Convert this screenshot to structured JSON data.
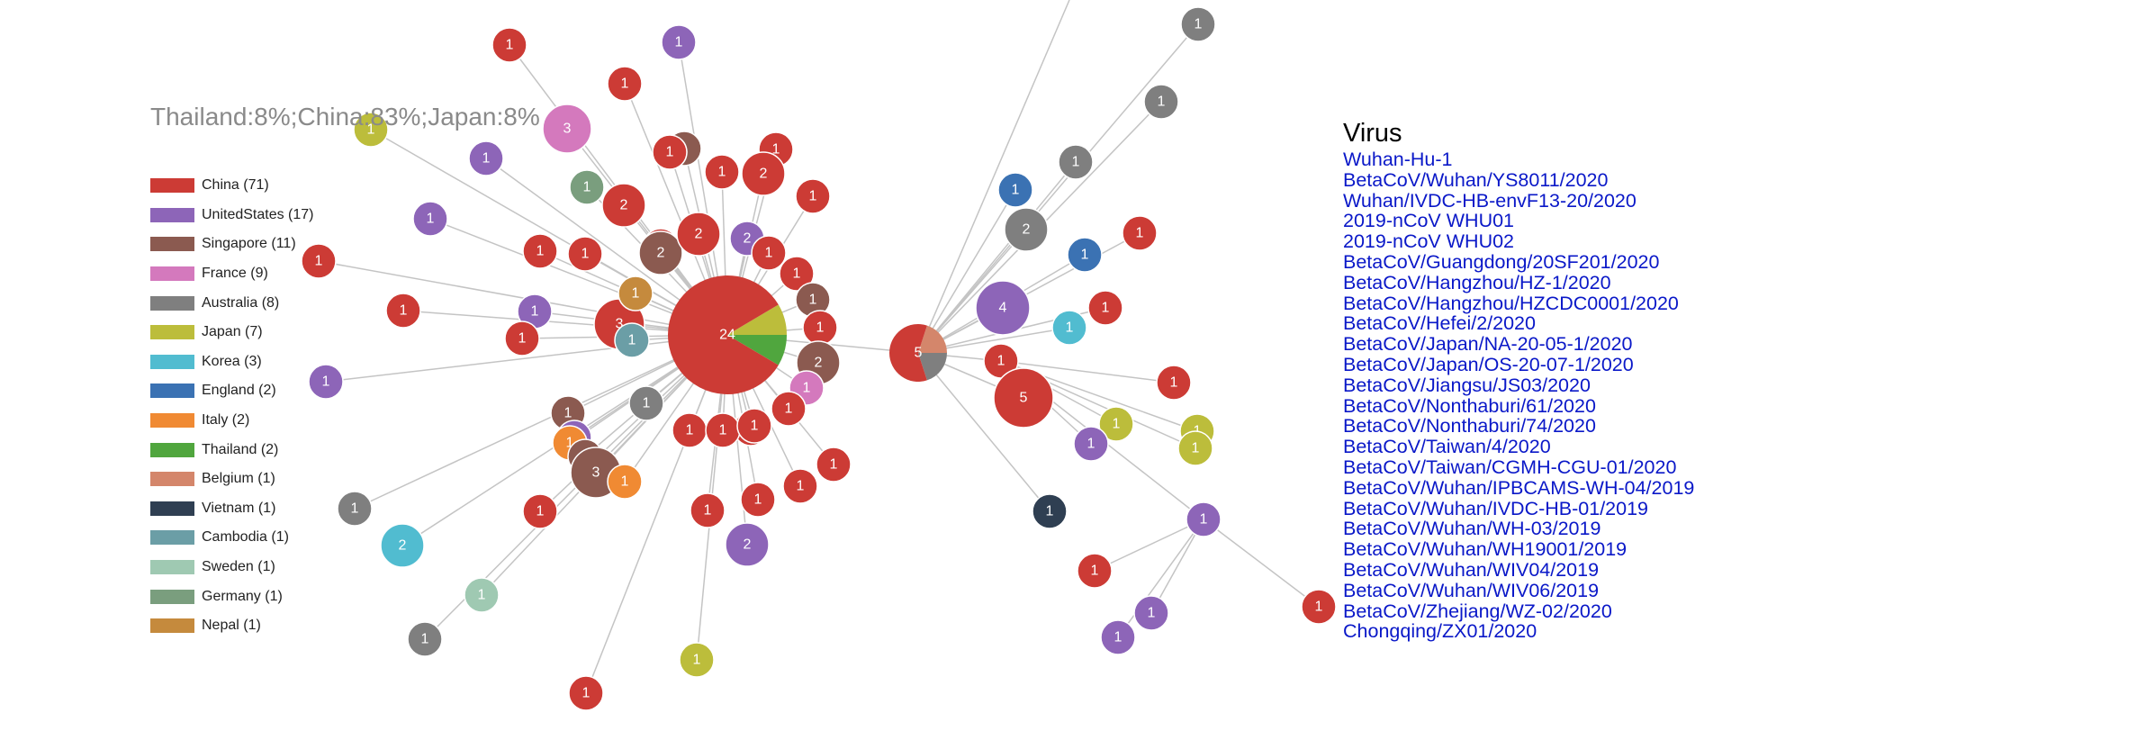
{
  "tooltip": "Thailand:8%;China:83%;Japan:8%",
  "colors": {
    "China": "#cc3b35",
    "UnitedStates": "#8d65b8",
    "Singapore": "#8b5a50",
    "France": "#d479bd",
    "Australia": "#7f7f7f",
    "Japan": "#bcbd3b",
    "Korea": "#51bcd0",
    "England": "#3b72b3",
    "Italy": "#f08a33",
    "Thailand": "#50a63e",
    "Belgium": "#d4866b",
    "Vietnam": "#2f3f52",
    "Cambodia": "#6b9ea6",
    "Sweden": "#9fc9b2",
    "Germany": "#7a9e7e",
    "Nepal": "#c58a3d",
    "edge": "#c4c4c4"
  },
  "legend": [
    {
      "country": "China",
      "label": "China (71)"
    },
    {
      "country": "UnitedStates",
      "label": "UnitedStates (17)"
    },
    {
      "country": "Singapore",
      "label": "Singapore (11)"
    },
    {
      "country": "France",
      "label": "France (9)"
    },
    {
      "country": "Australia",
      "label": "Australia (8)"
    },
    {
      "country": "Japan",
      "label": "Japan (7)"
    },
    {
      "country": "Korea",
      "label": "Korea (3)"
    },
    {
      "country": "England",
      "label": "England (2)"
    },
    {
      "country": "Italy",
      "label": "Italy (2)"
    },
    {
      "country": "Thailand",
      "label": "Thailand (2)"
    },
    {
      "country": "Belgium",
      "label": "Belgium (1)"
    },
    {
      "country": "Vietnam",
      "label": "Vietnam (1)"
    },
    {
      "country": "Cambodia",
      "label": "Cambodia (1)"
    },
    {
      "country": "Sweden",
      "label": "Sweden (1)"
    },
    {
      "country": "Germany",
      "label": "Germany (1)"
    },
    {
      "country": "Nepal",
      "label": "Nepal (1)"
    }
  ],
  "virus_panel": {
    "title": "Virus",
    "items": [
      "Wuhan-Hu-1",
      "BetaCoV/Wuhan/YS8011/2020",
      "Wuhan/IVDC-HB-envF13-20/2020",
      "2019-nCoV WHU01",
      "2019-nCoV WHU02",
      "BetaCoV/Guangdong/20SF201/2020",
      "BetaCoV/Hangzhou/HZ-1/2020",
      "BetaCoV/Hangzhou/HZCDC0001/2020",
      "BetaCoV/Hefei/2/2020",
      "BetaCoV/Japan/NA-20-05-1/2020",
      "BetaCoV/Japan/OS-20-07-1/2020",
      "BetaCoV/Jiangsu/JS03/2020",
      "BetaCoV/Nonthaburi/61/2020",
      "BetaCoV/Nonthaburi/74/2020",
      "BetaCoV/Taiwan/4/2020",
      "BetaCoV/Taiwan/CGMH-CGU-01/2020",
      "BetaCoV/Wuhan/IPBCAMS-WH-04/2019",
      "BetaCoV/Wuhan/IVDC-HB-01/2019",
      "BetaCoV/Wuhan/WH-03/2019",
      "BetaCoV/Wuhan/WH19001/2019",
      "BetaCoV/Wuhan/WIV04/2019",
      "BetaCoV/Wuhan/WIV06/2019",
      "BetaCoV/Zhejiang/WZ-02/2020",
      "Chongqing/ZX01/2020"
    ]
  },
  "network": {
    "hubs": [
      {
        "id": "hub-main",
        "count": "24",
        "composition": [
          {
            "country": "China",
            "share": 0.83
          },
          {
            "country": "Japan",
            "share": 0.085
          },
          {
            "country": "Thailand",
            "share": 0.085
          }
        ]
      },
      {
        "id": "hub-secondary",
        "count": "5",
        "composition": [
          {
            "country": "China",
            "share": 0.6
          },
          {
            "country": "Belgium",
            "share": 0.2
          },
          {
            "country": "Australia",
            "share": 0.2
          }
        ]
      }
    ],
    "nodes": [
      {
        "count": "1",
        "country": "China"
      },
      {
        "count": "1",
        "country": "UnitedStates"
      },
      {
        "count": "1",
        "country": "China"
      },
      {
        "count": "3",
        "country": "France"
      },
      {
        "count": "1",
        "country": "Japan"
      },
      {
        "count": "1",
        "country": "UnitedStates"
      },
      {
        "count": "1",
        "country": "UnitedStates"
      },
      {
        "count": "1",
        "country": "China"
      },
      {
        "count": "1",
        "country": "China"
      },
      {
        "count": "1",
        "country": "China"
      },
      {
        "count": "1",
        "country": "China"
      },
      {
        "count": "1",
        "country": "UnitedStates"
      },
      {
        "count": "1",
        "country": "China"
      },
      {
        "count": "1",
        "country": "UnitedStates"
      },
      {
        "count": "1",
        "country": "Germany"
      },
      {
        "count": "2",
        "country": "China"
      },
      {
        "count": "3",
        "country": "China"
      },
      {
        "count": "1",
        "country": "Nepal"
      },
      {
        "count": "1",
        "country": "Cambodia"
      },
      {
        "count": "1",
        "country": "China"
      },
      {
        "count": "1",
        "country": "Singapore"
      },
      {
        "count": "1",
        "country": "China"
      },
      {
        "count": "2",
        "country": "Singapore"
      },
      {
        "count": "2",
        "country": "China"
      },
      {
        "count": "1",
        "country": "China"
      },
      {
        "count": "2",
        "country": "China"
      },
      {
        "count": "1",
        "country": "China"
      },
      {
        "count": "2",
        "country": "UnitedStates"
      },
      {
        "count": "1",
        "country": "China"
      },
      {
        "count": "1",
        "country": "China"
      },
      {
        "count": "1",
        "country": "China"
      },
      {
        "count": "1",
        "country": "Singapore"
      },
      {
        "count": "1",
        "country": "China"
      },
      {
        "count": "2",
        "country": "Singapore"
      },
      {
        "count": "1",
        "country": "France"
      },
      {
        "count": "1",
        "country": "China"
      },
      {
        "count": "1",
        "country": "China"
      },
      {
        "count": "1",
        "country": "China"
      },
      {
        "count": "1",
        "country": "China"
      },
      {
        "count": "1",
        "country": "China"
      },
      {
        "count": "1",
        "country": "China"
      },
      {
        "count": "1",
        "country": "China"
      },
      {
        "count": "1",
        "country": "China"
      },
      {
        "count": "2",
        "country": "UnitedStates"
      },
      {
        "count": "1",
        "country": "China"
      },
      {
        "count": "1",
        "country": "Japan"
      },
      {
        "count": "1",
        "country": "China"
      },
      {
        "count": "1",
        "country": "Australia"
      },
      {
        "count": "1",
        "country": "Singapore"
      },
      {
        "count": "1",
        "country": "UnitedStates"
      },
      {
        "count": "1",
        "country": "Italy"
      },
      {
        "count": "1",
        "country": "Singapore"
      },
      {
        "count": "3",
        "country": "Singapore"
      },
      {
        "count": "1",
        "country": "Italy"
      },
      {
        "count": "1",
        "country": "Australia"
      },
      {
        "count": "2",
        "country": "Korea"
      },
      {
        "count": "1",
        "country": "China"
      },
      {
        "count": "1",
        "country": "Sweden"
      },
      {
        "count": "1",
        "country": "Australia"
      },
      {
        "count": "1",
        "country": "Australia"
      },
      {
        "count": "1",
        "country": "Australia"
      },
      {
        "count": "1",
        "country": "Australia"
      },
      {
        "count": "1",
        "country": "England"
      },
      {
        "count": "2",
        "country": "Australia"
      },
      {
        "count": "1",
        "country": "England"
      },
      {
        "count": "1",
        "country": "China"
      },
      {
        "count": "4",
        "country": "UnitedStates"
      },
      {
        "count": "1",
        "country": "China"
      },
      {
        "count": "1",
        "country": "Korea"
      },
      {
        "count": "1",
        "country": "China"
      },
      {
        "count": "5",
        "country": "China"
      },
      {
        "count": "1",
        "country": "China"
      },
      {
        "count": "1",
        "country": "Japan"
      },
      {
        "count": "1",
        "country": "Japan"
      },
      {
        "count": "1",
        "country": "Japan"
      },
      {
        "count": "1",
        "country": "UnitedStates"
      },
      {
        "count": "1",
        "country": "UnitedStates"
      },
      {
        "count": "1",
        "country": "Vietnam"
      },
      {
        "count": "1",
        "country": "China"
      },
      {
        "count": "1",
        "country": "UnitedStates"
      },
      {
        "count": "1",
        "country": "UnitedStates"
      },
      {
        "count": "1",
        "country": "China"
      }
    ]
  }
}
